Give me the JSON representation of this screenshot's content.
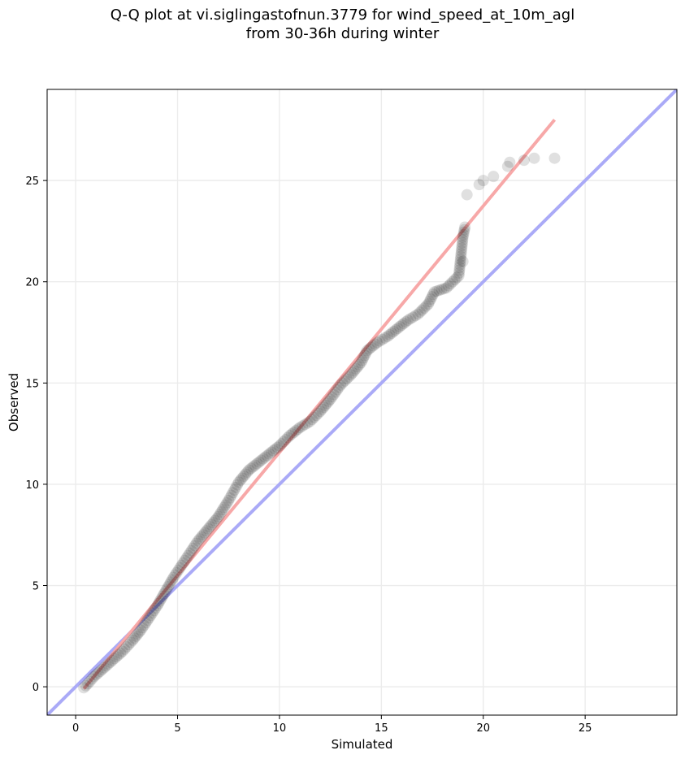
{
  "title_line_1": "Q-Q plot at vi.siglingastofnun.3779 for wind_speed_at_10m_agl",
  "title_line_2": "from 30-36h during winter",
  "chart_data": {
    "type": "scatter",
    "title": "Q-Q plot at vi.siglingastofnun.3779 for wind_speed_at_10m_agl from 30-36h during winter",
    "xlabel": "Simulated",
    "ylabel": "Observed",
    "xlim": [
      -1.4,
      29.5
    ],
    "ylim": [
      -1.4,
      29.5
    ],
    "xticks": [
      0,
      5,
      10,
      15,
      20,
      25
    ],
    "yticks": [
      0,
      5,
      10,
      15,
      20,
      25
    ],
    "grid": true,
    "colors": {
      "points": "#000000",
      "identity_line": "#aaaaf7",
      "fit_line": "#f7a8a8",
      "grid": "#ececec"
    },
    "identity_line": {
      "x": [
        -1.4,
        29.5
      ],
      "y": [
        -1.4,
        29.5
      ]
    },
    "fit_line": {
      "x": [
        0.4,
        23.5
      ],
      "y": [
        -0.1,
        28.0
      ]
    },
    "anchors": [
      [
        0.4,
        -0.05
      ],
      [
        0.6,
        0.15
      ],
      [
        0.9,
        0.5
      ],
      [
        1.3,
        0.85
      ],
      [
        1.8,
        1.3
      ],
      [
        2.3,
        1.75
      ],
      [
        2.8,
        2.3
      ],
      [
        3.2,
        2.8
      ],
      [
        3.6,
        3.4
      ],
      [
        4.0,
        4.0
      ],
      [
        4.4,
        4.7
      ],
      [
        4.8,
        5.4
      ],
      [
        5.2,
        6.0
      ],
      [
        5.6,
        6.6
      ],
      [
        6.0,
        7.2
      ],
      [
        6.5,
        7.8
      ],
      [
        7.0,
        8.4
      ],
      [
        7.5,
        9.2
      ],
      [
        8.0,
        10.1
      ],
      [
        8.5,
        10.7
      ],
      [
        9.0,
        11.1
      ],
      [
        9.5,
        11.5
      ],
      [
        10.0,
        11.9
      ],
      [
        10.5,
        12.4
      ],
      [
        11.0,
        12.8
      ],
      [
        11.5,
        13.1
      ],
      [
        12.0,
        13.6
      ],
      [
        12.5,
        14.2
      ],
      [
        13.0,
        14.9
      ],
      [
        13.5,
        15.4
      ],
      [
        14.0,
        16.0
      ],
      [
        14.3,
        16.6
      ],
      [
        14.8,
        17.0
      ],
      [
        15.3,
        17.3
      ],
      [
        15.8,
        17.7
      ],
      [
        16.3,
        18.1
      ],
      [
        16.8,
        18.4
      ],
      [
        17.3,
        18.9
      ],
      [
        17.6,
        19.5
      ],
      [
        18.2,
        19.7
      ],
      [
        18.8,
        20.3
      ],
      [
        19.0,
        22.2
      ],
      [
        19.1,
        22.7
      ]
    ],
    "points": [
      [
        19.0,
        21.0
      ],
      [
        19.2,
        24.3
      ],
      [
        19.8,
        24.8
      ],
      [
        20.0,
        25.0
      ],
      [
        20.5,
        25.2
      ],
      [
        21.2,
        25.7
      ],
      [
        21.3,
        25.9
      ],
      [
        22.0,
        26.0
      ],
      [
        22.5,
        26.1
      ],
      [
        23.5,
        26.1
      ]
    ]
  }
}
